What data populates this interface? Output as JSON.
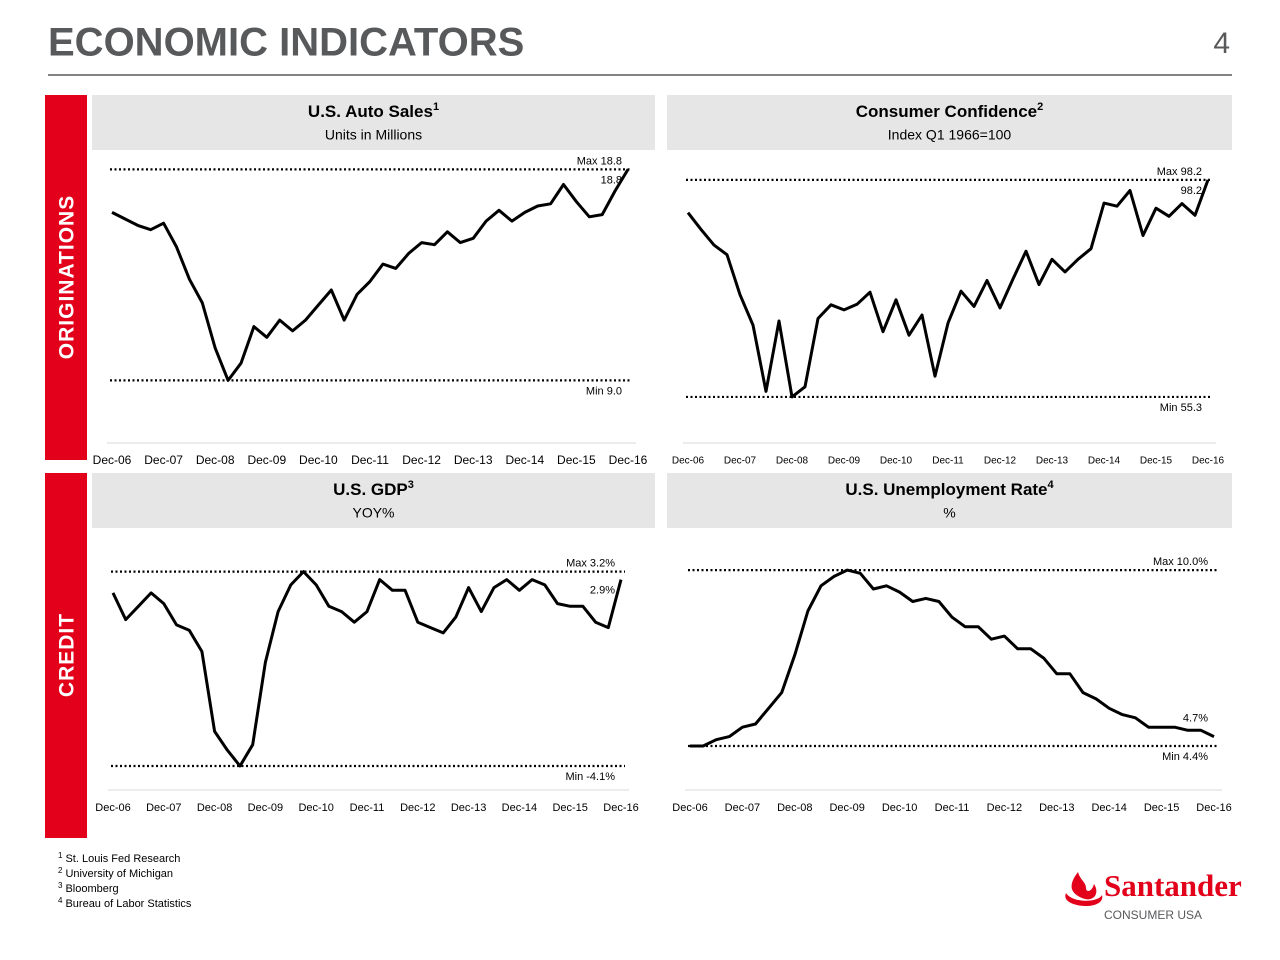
{
  "header": {
    "title": "ECONOMIC INDICATORS",
    "page": "4"
  },
  "sections": {
    "originations": "ORIGINATIONS",
    "credit": "CREDIT"
  },
  "footnotes": [
    {
      "mark": "1",
      "text": "St. Louis Fed Research"
    },
    {
      "mark": "2",
      "text": "University of Michigan"
    },
    {
      "mark": "3",
      "text": "Bloomberg"
    },
    {
      "mark": "4",
      "text": "Bureau of Labor Statistics"
    }
  ],
  "logo": {
    "name": "Santander",
    "subtitle": "CONSUMER USA"
  },
  "chart_data": [
    {
      "type": "line",
      "title": "U.S. Auto Sales",
      "title_note": "1",
      "subtitle": "Units in Millions",
      "color": "#000000",
      "categories": [
        "Dec-06",
        null,
        null,
        null,
        "Dec-07",
        null,
        null,
        null,
        "Dec-08",
        null,
        null,
        null,
        "Dec-09",
        null,
        null,
        null,
        "Dec-10",
        null,
        null,
        null,
        "Dec-11",
        null,
        null,
        null,
        "Dec-12",
        null,
        null,
        null,
        "Dec-13",
        null,
        null,
        null,
        "Dec-14",
        null,
        null,
        null,
        "Dec-15",
        null,
        null,
        null,
        "Dec-16"
      ],
      "values": [
        16.8,
        16.5,
        16.2,
        16.0,
        16.3,
        15.2,
        13.7,
        12.6,
        10.5,
        9.0,
        9.8,
        11.5,
        11.0,
        11.8,
        11.3,
        11.8,
        12.5,
        13.2,
        11.8,
        13.0,
        13.6,
        14.4,
        14.2,
        14.9,
        15.4,
        15.3,
        15.9,
        15.4,
        15.6,
        16.4,
        16.9,
        16.4,
        16.8,
        17.1,
        17.2,
        18.1,
        17.3,
        16.6,
        16.7,
        17.8,
        18.8
      ],
      "value_labels": [
        null,
        null,
        null,
        null,
        null,
        null,
        null,
        null,
        null,
        null,
        null,
        null,
        null,
        null,
        null,
        null,
        null,
        null,
        null,
        null,
        null,
        null,
        null,
        null,
        null,
        null,
        null,
        null,
        null,
        null,
        null,
        null,
        null,
        null,
        null,
        null,
        null,
        null,
        null,
        null,
        "18.8"
      ],
      "reference_lines": [
        {
          "value": 18.8,
          "label": "Max 18.8"
        },
        {
          "value": 9.0,
          "label": "Min 9.0"
        }
      ],
      "ylim": [
        6.0,
        19.7
      ]
    },
    {
      "type": "line",
      "title": "Consumer Confidence",
      "title_note": "2",
      "subtitle": "Index Q1 1966=100",
      "color": "#000000",
      "categories": [
        "Dec-06",
        null,
        null,
        null,
        "Dec-07",
        null,
        null,
        null,
        "Dec-08",
        null,
        null,
        null,
        "Dec-09",
        null,
        null,
        null,
        "Dec-10",
        null,
        null,
        null,
        "Dec-11",
        null,
        null,
        null,
        "Dec-12",
        null,
        null,
        null,
        "Dec-13",
        null,
        null,
        null,
        "Dec-14",
        null,
        null,
        null,
        "Dec-15",
        null,
        null,
        null,
        "Dec-16"
      ],
      "values": [
        91.7,
        88.4,
        85.3,
        83.4,
        75.5,
        69.5,
        56.4,
        70.3,
        55.3,
        57.3,
        70.8,
        73.5,
        72.5,
        73.6,
        76.0,
        68.2,
        74.5,
        67.5,
        71.5,
        59.4,
        69.9,
        76.2,
        73.2,
        78.3,
        72.9,
        78.6,
        84.1,
        77.5,
        82.5,
        80.0,
        82.5,
        84.6,
        93.6,
        93.0,
        96.1,
        87.2,
        92.6,
        91.0,
        93.5,
        91.2,
        98.2
      ],
      "value_labels": [
        null,
        null,
        null,
        null,
        null,
        null,
        null,
        null,
        null,
        null,
        null,
        null,
        null,
        null,
        null,
        null,
        null,
        null,
        null,
        null,
        null,
        null,
        null,
        null,
        null,
        null,
        null,
        null,
        null,
        null,
        null,
        null,
        null,
        null,
        null,
        null,
        null,
        null,
        null,
        null,
        "98.2"
      ],
      "reference_lines": [
        {
          "value": 98.2,
          "label": "Max 98.2"
        },
        {
          "value": 55.3,
          "label": "Min 55.3"
        }
      ],
      "ylim": [
        45.8,
        104.1
      ]
    },
    {
      "type": "line",
      "title": "U.S. GDP",
      "title_note": "3",
      "subtitle": "YOY%",
      "color": "#000000",
      "categories": [
        "Dec-06",
        null,
        null,
        null,
        "Dec-07",
        null,
        null,
        null,
        "Dec-08",
        null,
        null,
        null,
        "Dec-09",
        null,
        null,
        null,
        "Dec-10",
        null,
        null,
        null,
        "Dec-11",
        null,
        null,
        null,
        "Dec-12",
        null,
        null,
        null,
        "Dec-13",
        null,
        null,
        null,
        "Dec-14",
        null,
        null,
        null,
        "Dec-15",
        null,
        null,
        null,
        "Dec-16"
      ],
      "values": [
        2.4,
        1.4,
        1.9,
        2.4,
        2.0,
        1.2,
        1.0,
        0.2,
        -2.8,
        -3.5,
        -4.1,
        -3.3,
        -0.2,
        1.7,
        2.7,
        3.2,
        2.7,
        1.9,
        1.7,
        1.3,
        1.7,
        2.9,
        2.5,
        2.5,
        1.3,
        1.1,
        0.9,
        1.5,
        2.6,
        1.7,
        2.6,
        2.9,
        2.5,
        2.9,
        2.7,
        2.0,
        1.9,
        1.9,
        1.3,
        1.1,
        2.9
      ],
      "value_labels": [
        null,
        null,
        null,
        null,
        null,
        null,
        null,
        null,
        null,
        null,
        null,
        null,
        null,
        null,
        null,
        null,
        null,
        null,
        null,
        null,
        null,
        null,
        null,
        null,
        null,
        null,
        null,
        null,
        null,
        null,
        null,
        null,
        null,
        null,
        null,
        null,
        null,
        null,
        null,
        null,
        "2.9%"
      ],
      "reference_lines": [
        {
          "value": 3.2,
          "label": "Max 3.2%"
        },
        {
          "value": -4.1,
          "label": "Min -4.1%"
        }
      ],
      "ylim": [
        -5.0,
        4.2
      ]
    },
    {
      "type": "line",
      "title": "U.S. Unemployment Rate",
      "title_note": "4",
      "subtitle": "%",
      "color": "#000000",
      "categories": [
        "Dec-06",
        null,
        null,
        null,
        "Dec-07",
        null,
        null,
        null,
        "Dec-08",
        null,
        null,
        null,
        "Dec-09",
        null,
        null,
        null,
        "Dec-10",
        null,
        null,
        null,
        "Dec-11",
        null,
        null,
        null,
        "Dec-12",
        null,
        null,
        null,
        "Dec-13",
        null,
        null,
        null,
        "Dec-14",
        null,
        null,
        null,
        "Dec-15",
        null,
        null,
        null,
        "Dec-16"
      ],
      "values": [
        4.4,
        4.4,
        4.6,
        4.7,
        5.0,
        5.1,
        5.6,
        6.1,
        7.3,
        8.7,
        9.5,
        9.8,
        10.0,
        9.9,
        9.4,
        9.5,
        9.3,
        9.0,
        9.1,
        9.0,
        8.5,
        8.2,
        8.2,
        7.8,
        7.9,
        7.5,
        7.5,
        7.2,
        6.7,
        6.7,
        6.1,
        5.9,
        5.6,
        5.4,
        5.3,
        5.0,
        5.0,
        5.0,
        4.9,
        4.9,
        4.7
      ],
      "value_labels": [
        null,
        null,
        null,
        null,
        null,
        null,
        null,
        null,
        null,
        null,
        null,
        null,
        null,
        null,
        null,
        null,
        null,
        null,
        null,
        null,
        null,
        null,
        null,
        null,
        null,
        null,
        null,
        null,
        null,
        null,
        null,
        null,
        null,
        null,
        null,
        null,
        null,
        null,
        null,
        null,
        "4.7%"
      ],
      "reference_lines": [
        {
          "value": 10.0,
          "label": "Max 10.0%"
        },
        {
          "value": 4.4,
          "label": "Min 4.4%"
        }
      ],
      "ylim": [
        3.0,
        10.8
      ]
    }
  ]
}
